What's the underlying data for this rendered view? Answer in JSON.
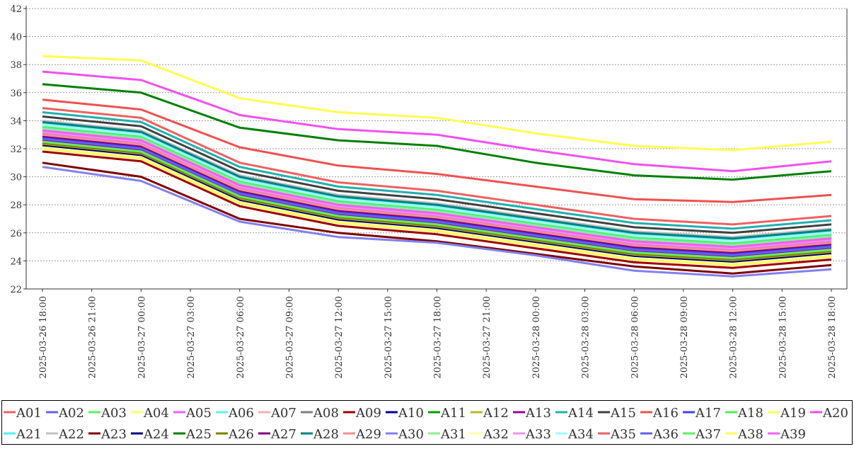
{
  "chart_data": {
    "type": "line",
    "title": "",
    "xlabel": "",
    "ylabel": "",
    "ylim": [
      22,
      42
    ],
    "yticks": [
      22,
      24,
      26,
      28,
      30,
      32,
      34,
      36,
      38,
      40,
      42
    ],
    "x_labels": [
      "2025-03-26  18:00",
      "2025-03-26  21:00",
      "2025-03-27  00:00",
      "2025-03-27  03:00",
      "2025-03-27  06:00",
      "2025-03-27  09:00",
      "2025-03-27  12:00",
      "2025-03-27  15:00",
      "2025-03-27  18:00",
      "2025-03-27  21:00",
      "2025-03-28  00:00",
      "2025-03-28  03:00",
      "2025-03-28  06:00",
      "2025-03-28  09:00",
      "2025-03-28  12:00",
      "2025-03-28  15:00",
      "2025-03-28  18:00"
    ],
    "x_hours": [
      0,
      6,
      12,
      18,
      24,
      30,
      36,
      42,
      48
    ],
    "grid": true,
    "legend_position": "bottom",
    "series": [
      {
        "name": "A01",
        "color": "#f06060",
        "values": [
          33.3,
          32.6,
          29.4,
          28.0,
          27.4,
          26.4,
          25.4,
          25.0,
          25.6
        ]
      },
      {
        "name": "A02",
        "color": "#6060f0",
        "values": [
          32.7,
          32.0,
          28.8,
          27.4,
          26.8,
          25.8,
          24.8,
          24.4,
          25.0
        ]
      },
      {
        "name": "A03",
        "color": "#60f060",
        "values": [
          33.2,
          32.5,
          29.3,
          27.9,
          27.3,
          26.3,
          25.3,
          24.9,
          25.5
        ]
      },
      {
        "name": "A04",
        "color": "#ffff60",
        "values": [
          32.8,
          32.1,
          28.9,
          27.5,
          26.9,
          25.9,
          24.9,
          24.5,
          25.1
        ]
      },
      {
        "name": "A05",
        "color": "#f060f0",
        "values": [
          33.1,
          32.4,
          29.2,
          27.8,
          27.2,
          26.2,
          25.2,
          24.8,
          25.4
        ]
      },
      {
        "name": "A06",
        "color": "#60f0f0",
        "values": [
          33.5,
          32.8,
          29.6,
          28.2,
          27.6,
          26.6,
          25.6,
          25.2,
          25.8
        ]
      },
      {
        "name": "A07",
        "color": "#f0b0b0",
        "values": [
          32.6,
          31.9,
          28.7,
          27.3,
          26.7,
          25.7,
          24.7,
          24.3,
          24.9
        ]
      },
      {
        "name": "A08",
        "color": "#808080",
        "values": [
          33.4,
          32.7,
          29.5,
          28.1,
          27.5,
          26.5,
          25.5,
          25.1,
          25.7
        ]
      },
      {
        "name": "A09",
        "color": "#a00000",
        "values": [
          31.8,
          31.1,
          27.9,
          26.5,
          25.9,
          24.9,
          23.9,
          23.5,
          24.1
        ]
      },
      {
        "name": "A10",
        "color": "#0000a0",
        "values": [
          32.5,
          31.8,
          28.6,
          27.2,
          26.6,
          25.6,
          24.6,
          24.2,
          24.8
        ]
      },
      {
        "name": "A11",
        "color": "#00a000",
        "values": [
          32.4,
          31.7,
          28.5,
          27.1,
          26.5,
          25.5,
          24.5,
          24.1,
          24.7
        ]
      },
      {
        "name": "A12",
        "color": "#b8b820",
        "values": [
          32.3,
          31.6,
          28.4,
          27.0,
          26.4,
          25.4,
          24.4,
          24.0,
          24.6
        ]
      },
      {
        "name": "A13",
        "color": "#a000a0",
        "values": [
          32.6,
          31.9,
          28.7,
          27.3,
          26.7,
          25.7,
          24.7,
          24.3,
          24.9
        ]
      },
      {
        "name": "A14",
        "color": "#20b0b0",
        "values": [
          34.6,
          33.9,
          30.7,
          29.3,
          28.7,
          27.7,
          26.7,
          26.3,
          26.9
        ]
      },
      {
        "name": "A15",
        "color": "#404040",
        "values": [
          34.3,
          33.6,
          30.4,
          29.0,
          28.4,
          27.4,
          26.4,
          26.0,
          26.6
        ]
      },
      {
        "name": "A16",
        "color": "#f05050",
        "values": [
          35.5,
          34.8,
          32.1,
          30.8,
          30.2,
          29.3,
          28.4,
          28.2,
          28.7
        ]
      },
      {
        "name": "A17",
        "color": "#4040f0",
        "values": [
          32.8,
          32.1,
          28.9,
          27.5,
          26.9,
          25.9,
          24.9,
          24.5,
          25.1
        ]
      },
      {
        "name": "A18",
        "color": "#50f050",
        "values": [
          33.6,
          32.9,
          29.7,
          28.3,
          27.7,
          26.7,
          25.7,
          25.3,
          25.9
        ]
      },
      {
        "name": "A19",
        "color": "#ffff50",
        "values": [
          38.6,
          38.3,
          35.6,
          34.6,
          34.2,
          33.1,
          32.2,
          31.9,
          32.5
        ]
      },
      {
        "name": "A20",
        "color": "#f050f0",
        "values": [
          37.5,
          36.9,
          34.4,
          33.4,
          33.0,
          31.9,
          30.9,
          30.4,
          31.1
        ]
      },
      {
        "name": "A21",
        "color": "#50f0f0",
        "values": [
          33.8,
          33.1,
          29.9,
          28.5,
          27.9,
          26.9,
          25.9,
          25.5,
          26.1
        ]
      },
      {
        "name": "A22",
        "color": "#c0c0c0",
        "values": [
          34.0,
          33.3,
          30.1,
          28.7,
          28.1,
          27.1,
          26.1,
          25.7,
          26.3
        ]
      },
      {
        "name": "A23",
        "color": "#800000",
        "values": [
          31.0,
          30.0,
          27.0,
          26.0,
          25.4,
          24.5,
          23.6,
          23.1,
          23.7
        ]
      },
      {
        "name": "A24",
        "color": "#000080",
        "values": [
          32.2,
          31.5,
          28.3,
          26.9,
          26.3,
          25.3,
          24.3,
          23.9,
          24.5
        ]
      },
      {
        "name": "A25",
        "color": "#008000",
        "values": [
          36.6,
          36.0,
          33.5,
          32.6,
          32.2,
          31.0,
          30.1,
          29.8,
          30.4
        ]
      },
      {
        "name": "A26",
        "color": "#808000",
        "values": [
          32.4,
          31.7,
          28.5,
          27.1,
          26.5,
          25.5,
          24.5,
          24.1,
          24.7
        ]
      },
      {
        "name": "A27",
        "color": "#800080",
        "values": [
          32.9,
          32.2,
          29.0,
          27.6,
          27.0,
          26.0,
          25.0,
          24.6,
          25.2
        ]
      },
      {
        "name": "A28",
        "color": "#008080",
        "values": [
          33.9,
          33.2,
          30.0,
          28.6,
          28.0,
          27.0,
          26.0,
          25.6,
          26.2
        ]
      },
      {
        "name": "A29",
        "color": "#f09090",
        "values": [
          33.0,
          32.3,
          29.1,
          27.7,
          27.1,
          26.1,
          25.1,
          24.7,
          25.3
        ]
      },
      {
        "name": "A30",
        "color": "#8080f0",
        "values": [
          30.7,
          29.7,
          26.8,
          25.7,
          25.3,
          24.4,
          23.3,
          22.9,
          23.4
        ]
      },
      {
        "name": "A31",
        "color": "#90f090",
        "values": [
          33.4,
          32.7,
          29.5,
          28.1,
          27.5,
          26.5,
          25.5,
          25.1,
          25.7
        ]
      },
      {
        "name": "A32",
        "color": "#ffffa0",
        "values": [
          32.1,
          31.4,
          28.2,
          26.8,
          26.2,
          25.2,
          24.2,
          23.8,
          24.4
        ]
      },
      {
        "name": "A33",
        "color": "#f090f0",
        "values": [
          33.2,
          32.5,
          29.3,
          27.9,
          27.3,
          26.3,
          25.3,
          24.9,
          25.5
        ]
      },
      {
        "name": "A34",
        "color": "#a0ffff",
        "values": [
          33.7,
          33.0,
          29.8,
          28.4,
          27.8,
          26.8,
          25.8,
          25.4,
          26.0
        ]
      },
      {
        "name": "A35",
        "color": "#f06060",
        "values": [
          34.9,
          34.2,
          31.0,
          29.6,
          29.0,
          28.0,
          27.0,
          26.6,
          27.2
        ]
      },
      {
        "name": "A36",
        "color": "#6060f0",
        "values": [
          32.7,
          32.0,
          28.8,
          27.4,
          26.8,
          25.8,
          24.8,
          24.4,
          25.0
        ]
      },
      {
        "name": "A37",
        "color": "#60f060",
        "values": [
          32.5,
          31.8,
          28.6,
          27.2,
          26.6,
          25.6,
          24.6,
          24.2,
          24.8
        ]
      },
      {
        "name": "A38",
        "color": "#ffff60",
        "values": [
          32.0,
          31.3,
          28.1,
          26.7,
          26.1,
          25.1,
          24.1,
          23.7,
          24.3
        ]
      },
      {
        "name": "A39",
        "color": "#f060f0",
        "values": [
          33.3,
          32.6,
          29.4,
          28.0,
          27.4,
          26.4,
          25.4,
          25.0,
          25.6
        ]
      }
    ]
  }
}
